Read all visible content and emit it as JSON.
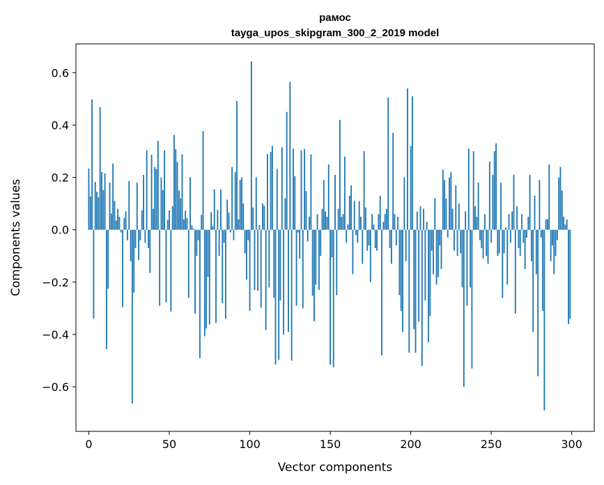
{
  "chart_data": {
    "type": "bar",
    "title": "рамос",
    "subtitle": "tayga_upos_skipgram_300_2_2019 model",
    "xlabel": "Vector components",
    "ylabel": "Components values",
    "xlim": [
      -8,
      314
    ],
    "ylim": [
      -0.77,
      0.71
    ],
    "xticks": [
      0,
      50,
      100,
      150,
      200,
      250,
      300
    ],
    "xtick_labels": [
      "0",
      "50",
      "100",
      "150",
      "200",
      "250",
      "300"
    ],
    "yticks": [
      -0.6,
      -0.4,
      -0.2,
      0.0,
      0.2,
      0.4,
      0.6
    ],
    "ytick_labels": [
      "−0.6",
      "−0.4",
      "−0.2",
      "0.0",
      "0.2",
      "0.4",
      "0.6"
    ],
    "bar_color": "#1f77b4",
    "values": [
      0.234,
      0.127,
      0.498,
      -0.339,
      0.183,
      0.145,
      0.124,
      0.468,
      0.22,
      0.152,
      0.215,
      -0.456,
      -0.225,
      0.181,
      0.062,
      0.253,
      0.11,
      0.035,
      0.08,
      0.05,
      -0.01,
      -0.295,
      0.045,
      0.07,
      -0.04,
      0.186,
      -0.12,
      -0.664,
      -0.24,
      -0.07,
      0.18,
      -0.115,
      -0.04,
      0.074,
      0.21,
      -0.05,
      0.303,
      -0.07,
      -0.165,
      0.287,
      0.08,
      0.24,
      0.232,
      0.34,
      -0.29,
      0.2,
      0.152,
      0.303,
      -0.277,
      0.038,
      0.074,
      -0.312,
      0.09,
      0.362,
      0.308,
      0.259,
      0.15,
      0.12,
      0.288,
      0.04,
      0.073,
      0.045,
      -0.26,
      0.201,
      0.017,
      0.005,
      -0.32,
      -0.1,
      -0.04,
      -0.49,
      0.057,
      0.377,
      -0.407,
      -0.377,
      -0.18,
      -0.362,
      0.067,
      0.014,
      0.154,
      -0.356,
      0.076,
      -0.1,
      0.154,
      -0.28,
      -0.05,
      -0.34,
      0.115,
      0.066,
      -0.01,
      0.24,
      -0.04,
      0.22,
      0.492,
      0.04,
      0.19,
      0.2,
      0.1,
      -0.09,
      -0.19,
      -0.04,
      -0.31,
      0.643,
      0.085,
      -0.23,
      0.2,
      -0.233,
      0.018,
      -0.298,
      0.1,
      0.092,
      -0.383,
      0.289,
      -0.22,
      0.297,
      0.321,
      -0.26,
      -0.515,
      0.232,
      -0.497,
      -0.27,
      0.315,
      -0.4,
      0.12,
      0.45,
      -0.39,
      0.565,
      -0.5,
      0.31,
      0.205,
      -0.29,
      -0.01,
      -0.11,
      0.303,
      -0.3,
      0.309,
      0.148,
      -0.045,
      0.05,
      0.288,
      -0.252,
      -0.35,
      -0.21,
      0.06,
      -0.23,
      -0.1,
      0.08,
      0.19,
      0.07,
      0.05,
      0.25,
      -0.515,
      -0.105,
      -0.525,
      0.21,
      -0.25,
      0.08,
      0.42,
      0.05,
      0.06,
      0.28,
      -0.05,
      0.02,
      0.13,
      0.17,
      -0.17,
      0.11,
      -0.02,
      -0.05,
      0.11,
      0.05,
      -0.13,
      0.3,
      0.085,
      -0.08,
      -0.06,
      -0.2,
      0.06,
      0.02,
      -0.07,
      -0.08,
      0.06,
      0.13,
      -0.48,
      0.03,
      0.06,
      0.08,
      0.505,
      -0.07,
      -0.13,
      0.37,
      0.06,
      -0.06,
      0.05,
      -0.25,
      -0.31,
      -0.39,
      0.2,
      -0.12,
      0.54,
      -0.47,
      0.32,
      0.51,
      -0.38,
      -0.47,
      0.07,
      -0.35,
      0.09,
      -0.52,
      0.08,
      -0.27,
      0.03,
      -0.43,
      -0.33,
      -0.08,
      -0.17,
      0.12,
      -0.21,
      -0.18,
      -0.06,
      -0.15,
      0.23,
      0.19,
      0.12,
      -0.03,
      0.2,
      0.22,
      0.08,
      -0.08,
      0.17,
      -0.1,
      0.1,
      -0.09,
      -0.22,
      -0.6,
      0.07,
      -0.29,
      0.31,
      -0.22,
      -0.53,
      0.3,
      0.09,
      0.05,
      0.18,
      -0.04,
      -0.07,
      -0.11,
      0.06,
      -0.1,
      -0.13,
      0.26,
      -0.05,
      0.21,
      0.3,
      0.33,
      -0.1,
      -0.09,
      0.18,
      -0.26,
      -0.09,
      0.01,
      -0.21,
      0.06,
      -0.05,
      0.07,
      0.21,
      -0.32,
      0.09,
      -0.07,
      -0.1,
      0.06,
      -0.05,
      -0.15,
      -0.03,
      0.05,
      0.21,
      -0.12,
      -0.39,
      0.13,
      -0.17,
      -0.56,
      0.19,
      -0.03,
      -0.31,
      -0.69,
      0.04,
      0.04,
      0.25,
      -0.12,
      -0.06,
      -0.17,
      -0.1,
      -0.04,
      0.2,
      0.24,
      0.15,
      0.05,
      0.02,
      0.04,
      -0.36,
      -0.34
    ]
  }
}
